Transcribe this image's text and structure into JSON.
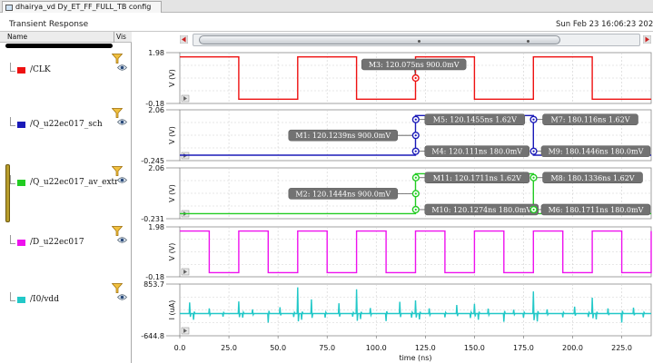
{
  "tab": {
    "title": "dhairya_vd Dy_ET_FF_FULL_TB config"
  },
  "header": {
    "title": "Transient Response",
    "timestamp": "Sun Feb 23 16:06:23 2025"
  },
  "sidebar": {
    "col_name": "Name",
    "col_vis": "Vis",
    "signals": [
      {
        "name": "/CLK",
        "color": "#ee1111",
        "selected": false
      },
      {
        "name": "/Q_u22ec017_sch",
        "color": "#1a1ab8",
        "selected": false
      },
      {
        "name": "/Q_u22ec017_av_extr",
        "color": "#22cc22",
        "selected": true
      },
      {
        "name": "/D_u22ec017",
        "color": "#ee11ee",
        "selected": false
      },
      {
        "name": "/I0/vdd",
        "color": "#22c8c8",
        "selected": false
      }
    ]
  },
  "chart_data": {
    "type": "line",
    "xlabel": "time (ns)",
    "xlim": [
      0,
      240
    ],
    "xticks": [
      "0.0",
      "25.0",
      "50.0",
      "75.0",
      "100.0",
      "125.0",
      "150.0",
      "175.0",
      "200.0",
      "225.0"
    ],
    "grid": true,
    "panels": [
      {
        "id": "clk",
        "ylabel": "V (V)",
        "ytop": "1.98",
        "ybot": "-0.18",
        "ylim": [
          -0.18,
          1.98
        ],
        "color": "#ee1111",
        "x": [
          0,
          30,
          30,
          60,
          60,
          90,
          90,
          120,
          120,
          150,
          150,
          180,
          180,
          210,
          210,
          240
        ],
        "y": [
          1.8,
          1.8,
          0,
          0,
          1.8,
          1.8,
          0,
          0,
          1.8,
          1.8,
          0,
          0,
          1.8,
          1.8,
          0,
          0
        ],
        "markers": [
          {
            "label": "M3: 120.075ns 900.0mV",
            "x": 120.075,
            "y": 0.9,
            "dir": "upleft"
          }
        ]
      },
      {
        "id": "q_sch",
        "ylabel": "V (V)",
        "ytop": "2.06",
        "ybot": "-0.245",
        "ylim": [
          -0.245,
          2.06
        ],
        "color": "#1a1ab8",
        "x": [
          0,
          120,
          120,
          180,
          180,
          240
        ],
        "y": [
          0,
          0,
          1.8,
          1.8,
          0,
          0
        ],
        "markers": [
          {
            "label": "M1: 120.1239ns 900.0mV",
            "x": 120.1239,
            "y": 0.9,
            "dir": "left"
          },
          {
            "label": "M5: 120.1455ns 1.62V",
            "x": 120.1455,
            "y": 1.62,
            "dir": "right"
          },
          {
            "label": "M4: 120.111ns 180.0mV",
            "x": 120.111,
            "y": 0.18,
            "dir": "right"
          },
          {
            "label": "M7: 180.116ns 1.62V",
            "x": 180.116,
            "y": 1.62,
            "dir": "right"
          },
          {
            "label": "M9: 180.1446ns 180.0mV",
            "x": 180.1446,
            "y": 0.18,
            "dir": "right"
          }
        ]
      },
      {
        "id": "q_extr",
        "ylabel": "V (V)",
        "ytop": "2.06",
        "ybot": "-0.231",
        "ylim": [
          -0.231,
          2.06
        ],
        "color": "#22cc22",
        "x": [
          0,
          120,
          120,
          180,
          180,
          240
        ],
        "y": [
          0,
          0,
          1.8,
          1.8,
          0,
          0
        ],
        "markers": [
          {
            "label": "M8: 180.1336ns 1.62V",
            "x": 180.1336,
            "y": 1.62,
            "dir": "right"
          },
          {
            "label": "M2: 120.1444ns 900.0mV",
            "x": 120.1444,
            "y": 0.9,
            "dir": "left"
          },
          {
            "label": "M11: 120.1711ns 1.62V",
            "x": 120.1711,
            "y": 1.62,
            "dir": "right"
          },
          {
            "label": "M10: 120.1274ns 180.0mV",
            "x": 120.1274,
            "y": 0.18,
            "dir": "right"
          },
          {
            "label": "M6: 180.1711ns 180.0mV",
            "x": 180.1711,
            "y": 0.18,
            "dir": "right"
          }
        ]
      },
      {
        "id": "d",
        "ylabel": "V (V)",
        "ytop": "1.98",
        "ybot": "-0.18",
        "ylim": [
          -0.18,
          1.98
        ],
        "color": "#ee11ee",
        "period": 15,
        "high_first": true,
        "markers": []
      },
      {
        "id": "vdd",
        "ylabel": "I (uA)",
        "ytop": "853.7",
        "ybot": "-644.8",
        "ylim": [
          -644.8,
          853.7
        ],
        "color": "#22c8c8",
        "spikes": [
          [
            5,
            320
          ],
          [
            7,
            -180
          ],
          [
            15,
            150
          ],
          [
            22,
            -90
          ],
          [
            30,
            350
          ],
          [
            32,
            -120
          ],
          [
            37,
            120
          ],
          [
            45,
            -260
          ],
          [
            51,
            180
          ],
          [
            58,
            -100
          ],
          [
            60,
            760
          ],
          [
            62,
            -180
          ],
          [
            67,
            410
          ],
          [
            74,
            -120
          ],
          [
            81,
            300
          ],
          [
            88,
            -90
          ],
          [
            90,
            700
          ],
          [
            92,
            -160
          ],
          [
            97,
            160
          ],
          [
            105,
            -220
          ],
          [
            112,
            340
          ],
          [
            118,
            -120
          ],
          [
            120,
            380
          ],
          [
            122,
            -170
          ],
          [
            127,
            150
          ],
          [
            135,
            -110
          ],
          [
            141,
            250
          ],
          [
            148,
            -130
          ],
          [
            150,
            280
          ],
          [
            152,
            -180
          ],
          [
            157,
            140
          ],
          [
            165,
            -240
          ],
          [
            170,
            110
          ],
          [
            175,
            -120
          ],
          [
            180,
            640
          ],
          [
            182,
            -230
          ],
          [
            187,
            120
          ],
          [
            195,
            -110
          ],
          [
            201,
            200
          ],
          [
            208,
            -100
          ],
          [
            210,
            460
          ],
          [
            212,
            -170
          ],
          [
            218,
            150
          ],
          [
            225,
            -260
          ],
          [
            231,
            170
          ],
          [
            236,
            -110
          ]
        ],
        "markers": []
      }
    ]
  }
}
